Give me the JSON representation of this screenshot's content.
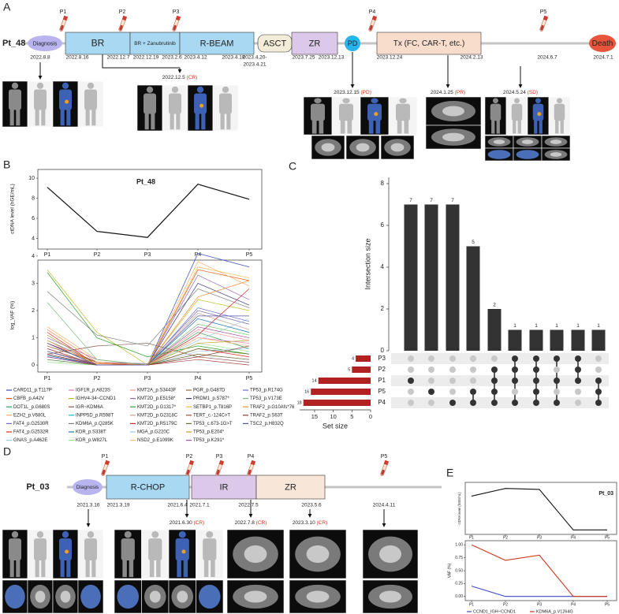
{
  "panel_labels": [
    "A",
    "B",
    "C",
    "D",
    "E"
  ],
  "timelines": [
    {
      "patient": "Pt_48",
      "status_color": "#e0301e",
      "events": [
        {
          "label": "Diagnosis",
          "shape": "ellipse",
          "color": "#b8b4f0"
        },
        {
          "label": "BR",
          "shape": "box",
          "color": "#a9d9f2"
        },
        {
          "label": "BR + Zanubrutinib",
          "shape": "box",
          "color": "#a9d9f2"
        },
        {
          "label": "R-BEAM",
          "shape": "box",
          "color": "#a9d9f2"
        },
        {
          "label": "ASCT",
          "shape": "round",
          "color": "#f2ecd8"
        },
        {
          "label": "ZR",
          "shape": "box",
          "color": "#dcc8e8"
        },
        {
          "label": "PD",
          "shape": "circle",
          "color": "#27b4ea"
        },
        {
          "label": "Tx (FC, CAR-T, etc.)",
          "shape": "box",
          "color": "#f8ddcc"
        },
        {
          "label": "Death",
          "shape": "ellipse",
          "color": "#e8553c"
        }
      ],
      "dates": [
        "2022.8.8",
        "2022.8.16",
        "2022.12.7",
        "2022.12.19",
        "2023.2.6",
        "2023.4.12",
        "2023.4.18",
        "2023.4.20-",
        "2023.4.21",
        "2023.7.25",
        "2023.12.13",
        "2023.12.24",
        "2024.2.13",
        "2024.6.7",
        "2024.7.1"
      ],
      "samples": [
        "P1",
        "P2",
        "P3",
        "P4",
        "P5"
      ],
      "responses": [
        {
          "date": "2022.12.5",
          "status": "(CR)"
        },
        {
          "date": "2023.12.15",
          "status": "(PD)"
        },
        {
          "date": "2024.1.25",
          "status": "(PR)"
        },
        {
          "date": "2024.5.24",
          "status": "(SD)"
        }
      ]
    },
    {
      "patient": "Pt_03",
      "status_color": "#e0301e",
      "events": [
        {
          "label": "Diagnosis",
          "shape": "ellipse",
          "color": "#b8b4f0"
        },
        {
          "label": "R-CHOP",
          "shape": "box",
          "color": "#a9d9f2"
        },
        {
          "label": "IR",
          "shape": "box",
          "color": "#dcc8e8"
        },
        {
          "label": "ZR",
          "shape": "box",
          "color": "#f8e6d8"
        }
      ],
      "dates": [
        "2021.3.16",
        "2021.3.19",
        "2021.6.4",
        "2021.7.1",
        "2022.7.5",
        "2023.5.6",
        "2024.4.11"
      ],
      "samples": [
        "P1",
        "P2",
        "P3",
        "P4",
        "P5"
      ],
      "responses": [
        {
          "date": "2021.6.30",
          "status": "(CR)"
        },
        {
          "date": "2022.7.8",
          "status": "(CR)"
        },
        {
          "date": "2023.3.10",
          "status": "(CR)"
        }
      ]
    }
  ],
  "chart_data": [
    {
      "type": "line",
      "title": "Pt_48",
      "y_label": "ctDNA level (hGE/mL)",
      "categories": [
        "P1",
        "P2",
        "P3",
        "P4",
        "P5"
      ],
      "values": [
        9.1,
        4.7,
        4.1,
        9.4,
        7.9
      ],
      "color": "#111111",
      "ylim": [
        3.8,
        10.4
      ],
      "yticks": [
        4,
        6,
        8,
        10
      ]
    },
    {
      "type": "line",
      "y_label": "log_VAF (%)",
      "categories": [
        "P1",
        "P2",
        "P3",
        "P4",
        "P5"
      ],
      "ylim": [
        -0.2,
        4.2
      ],
      "yticks": [
        0,
        1,
        2,
        3,
        4
      ],
      "series": [
        {
          "name": "CARD11_p.T117P",
          "color": "#3b4cc0",
          "values": [
            0.8,
            0,
            0,
            4.1,
            3.6
          ]
        },
        {
          "name": "CBFB_p.A42V",
          "color": "#e6550d",
          "values": [
            0.5,
            0.05,
            0,
            3.5,
            3.1
          ]
        },
        {
          "name": "DOT1L_p.G680S",
          "color": "#31a354",
          "values": [
            0.3,
            0,
            0,
            1.2,
            0.6
          ]
        },
        {
          "name": "EZH2_p.V680L",
          "color": "#fdae6b",
          "values": [
            1.4,
            0.2,
            0,
            3.8,
            2.9
          ]
        },
        {
          "name": "FAT4_p.G2530R",
          "color": "#756bb1",
          "values": [
            0.9,
            0.1,
            0.05,
            2.0,
            1.5
          ]
        },
        {
          "name": "FAT4_p.G2532R",
          "color": "#de2d26",
          "values": [
            1.2,
            0,
            0,
            0.6,
            0.3
          ]
        },
        {
          "name": "GNAS_p.A462E",
          "color": "#9ecae1",
          "values": [
            0.2,
            0,
            0,
            0.9,
            1.7
          ]
        },
        {
          "name": "IGF1R_p.A823S",
          "color": "#e377c2",
          "values": [
            0.7,
            0.1,
            0,
            1.0,
            0.8
          ]
        },
        {
          "name": "IGHV4-34~CCND1",
          "color": "#bcbd22",
          "values": [
            3.5,
            1.2,
            0,
            2.4,
            2.0
          ]
        },
        {
          "name": "IGR~KDM6A",
          "color": "#8c564b",
          "values": [
            0.4,
            0.7,
            0.8,
            0.3,
            0.1
          ]
        },
        {
          "name": "INPP5D_p.R598T",
          "color": "#17becf",
          "values": [
            0.6,
            0,
            0,
            0.4,
            0.2
          ]
        },
        {
          "name": "KDM6A_p.Q285K",
          "color": "#7f7f7f",
          "values": [
            2.7,
            1.1,
            0.7,
            2.8,
            2.1
          ]
        },
        {
          "name": "KDR_p.S338T",
          "color": "#1f77b4",
          "values": [
            0.35,
            0,
            0,
            1.7,
            1.2
          ]
        },
        {
          "name": "KDR_p.W827L",
          "color": "#98df8a",
          "values": [
            0.1,
            0,
            0,
            0.8,
            0.5
          ]
        },
        {
          "name": "KMT2A_p.S3443F",
          "color": "#ff9896",
          "values": [
            0.5,
            0,
            0,
            1.3,
            0.9
          ]
        },
        {
          "name": "KMT2D_p.E5158*",
          "color": "#9467bd",
          "values": [
            1.0,
            0.2,
            0,
            3.3,
            2.4
          ]
        },
        {
          "name": "KMT2D_p.G1317*",
          "color": "#2ca02c",
          "values": [
            3.4,
            1.0,
            0.3,
            0.7,
            0.4
          ]
        },
        {
          "name": "KMT2D_p.G2318C",
          "color": "#c49c94",
          "values": [
            0.6,
            0,
            0,
            1.9,
            1.3
          ]
        },
        {
          "name": "KMT2D_p.R5179C",
          "color": "#d62728",
          "values": [
            0.8,
            0.1,
            0,
            1.1,
            2.8
          ]
        },
        {
          "name": "MGA_p.G220C",
          "color": "#aec7e8",
          "values": [
            0.3,
            0,
            0,
            0.5,
            0.6
          ]
        },
        {
          "name": "NSD2_p.E1099K",
          "color": "#ffbb78",
          "values": [
            0.4,
            0,
            0,
            1.0,
            0.7
          ]
        },
        {
          "name": "PGR_p.G487D",
          "color": "#8c6d31",
          "values": [
            0.7,
            0.1,
            0,
            0.4,
            0.2
          ]
        },
        {
          "name": "PRDM1_p.S787*",
          "color": "#393b79",
          "values": [
            0.5,
            0,
            0,
            3.0,
            2.2
          ]
        },
        {
          "name": "SETBP1_p.T816P",
          "color": "#e7ba52",
          "values": [
            0.9,
            0,
            0,
            3.6,
            3.2
          ]
        },
        {
          "name": "TERT_c.-124C>T",
          "color": "#ad494a",
          "values": [
            0.6,
            0,
            0,
            0.2,
            0
          ]
        },
        {
          "name": "TP53_c.673-1G>T",
          "color": "#637939",
          "values": [
            0.2,
            0,
            0,
            0.6,
            0.4
          ]
        },
        {
          "name": "TP53_p.E204*",
          "color": "#bd9e39",
          "values": [
            1.1,
            0,
            0,
            0.8,
            0.9
          ]
        },
        {
          "name": "TP53_p.K291*",
          "color": "#a55194",
          "values": [
            0.3,
            0,
            0,
            1.4,
            1.0
          ]
        },
        {
          "name": "TP53_p.R174G",
          "color": "#6b6ecf",
          "values": [
            0.5,
            0,
            0,
            2.1,
            1.6
          ]
        },
        {
          "name": "TP53_p.V173E",
          "color": "#74c476",
          "values": [
            2.3,
            0.2,
            0,
            1.5,
            1.1
          ]
        },
        {
          "name": "TRAF2_p.G10Afs*76",
          "color": "#fd8d3c",
          "values": [
            1.3,
            0.1,
            0,
            2.5,
            3.1
          ]
        },
        {
          "name": "TRAF2_p.S63T",
          "color": "#843c39",
          "values": [
            0.4,
            0,
            0,
            0.3,
            0.7
          ]
        },
        {
          "name": "TSC2_p.H832Q",
          "color": "#5254a3",
          "values": [
            0.8,
            0,
            0,
            1.8,
            1.8
          ]
        }
      ]
    },
    {
      "type": "upset",
      "y_label": "Intersection size",
      "values": [
        7,
        7,
        7,
        5,
        2,
        1,
        1,
        1,
        1,
        1
      ],
      "color": "#333333",
      "ylim": [
        0,
        8.3
      ],
      "yticks": [
        0,
        2,
        4,
        6,
        8
      ],
      "set_names": [
        "P3",
        "P2",
        "P1",
        "P5",
        "P4"
      ],
      "set_sizes": [
        4,
        5,
        14,
        16,
        18
      ],
      "set_color": "#b22222",
      "set_label": "Set size",
      "set_xlim": [
        0,
        19
      ],
      "set_xticks": [
        0,
        5,
        10,
        15
      ],
      "members": [
        [
          false,
          false,
          true,
          false,
          false
        ],
        [
          false,
          false,
          false,
          true,
          false
        ],
        [
          false,
          false,
          false,
          false,
          true
        ],
        [
          false,
          false,
          false,
          true,
          true
        ],
        [
          false,
          true,
          true,
          true,
          true
        ],
        [
          true,
          true,
          true,
          false,
          true
        ],
        [
          true,
          true,
          true,
          true,
          true
        ],
        [
          true,
          false,
          true,
          false,
          true
        ],
        [
          true,
          true,
          true,
          false,
          false
        ],
        [
          false,
          false,
          true,
          true,
          true
        ]
      ]
    },
    {
      "type": "line",
      "title": "Pt_03",
      "y_label": "ctDNA level (hGE/mL)",
      "categories": [
        "P1",
        "P2",
        "P3",
        "P4",
        "P5"
      ],
      "values": [
        3.5,
        4.3,
        4.2,
        0,
        0
      ],
      "color": "#111111",
      "ylim": [
        -0.3,
        4.6
      ]
    },
    {
      "type": "line",
      "y_label": "VAF (%)",
      "categories": [
        "P1",
        "P2",
        "P3",
        "P4",
        "P5"
      ],
      "ylim": [
        -0.05,
        1.05
      ],
      "yticks": [
        {
          "value": 0,
          "label": "0.00"
        },
        {
          "value": 0.25,
          "label": "0.25"
        },
        {
          "value": 0.5,
          "label": "0.50"
        },
        {
          "value": 0.75,
          "label": "0.75"
        },
        {
          "value": 1,
          "label": "1.00"
        }
      ],
      "series": [
        {
          "name": "CCND1_IGH~CCND1",
          "color": "#3b4cc0",
          "values": [
            0.2,
            0,
            0,
            0,
            0
          ]
        },
        {
          "name": "KDM6A_p.V1264G",
          "color": "#d0381e",
          "values": [
            1.0,
            0.7,
            0.8,
            0,
            0
          ]
        }
      ]
    }
  ]
}
